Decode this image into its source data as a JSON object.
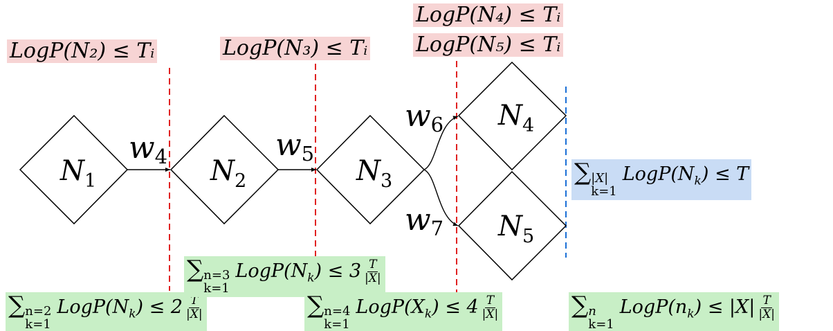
{
  "nodes": [
    {
      "letter": "N",
      "sub": "1"
    },
    {
      "letter": "N",
      "sub": "2"
    },
    {
      "letter": "N",
      "sub": "3"
    },
    {
      "letter": "N",
      "sub": "4"
    },
    {
      "letter": "N",
      "sub": "5"
    }
  ],
  "edges": [
    {
      "letter": "w",
      "sub": "4"
    },
    {
      "letter": "w",
      "sub": "5"
    },
    {
      "letter": "w",
      "sub": "6"
    },
    {
      "letter": "w",
      "sub": "7"
    }
  ],
  "thresholds": {
    "n2": "LogP(N₂) ≤ Tᵢ",
    "n3": "LogP(N₃) ≤ Tᵢ",
    "n4": "LogP(N₄) ≤ Tᵢ",
    "n5": "LogP(N₅) ≤ Tᵢ"
  },
  "sums": {
    "total": {
      "upper": "|X|",
      "lower": "k=1",
      "body": "LogP(N",
      "idx": "k",
      "rel": ") ≤ T"
    },
    "s2": {
      "upper": "n=2",
      "lower": "k=1",
      "body": "LogP(N",
      "idx": "k",
      "rel": ") ≤ 2",
      "num": "T",
      "den": "|X|"
    },
    "s3": {
      "upper": "n=3",
      "lower": "k=1",
      "body": "LogP(N",
      "idx": "k",
      "rel": ") ≤ 3",
      "num": "T",
      "den": "|X|"
    },
    "s4": {
      "upper": "n=4",
      "lower": "k=1",
      "body": "LogP(X",
      "idx": "k",
      "rel": ") ≤ 4",
      "num": "T",
      "den": "|X|"
    },
    "sn": {
      "upper": "n",
      "lower": "k=1",
      "body": "LogP(n",
      "idx": "k",
      "rel": ") ≤ |X|",
      "num": "T",
      "den": "|X|"
    }
  },
  "sigma": "∑",
  "colors": {
    "threshold_bg": "#f7d4d4",
    "total_bg": "#c9dcf5",
    "sum_bg": "#c8efc6",
    "cut_line": "#e02020",
    "final_line": "#1a6fd6"
  }
}
